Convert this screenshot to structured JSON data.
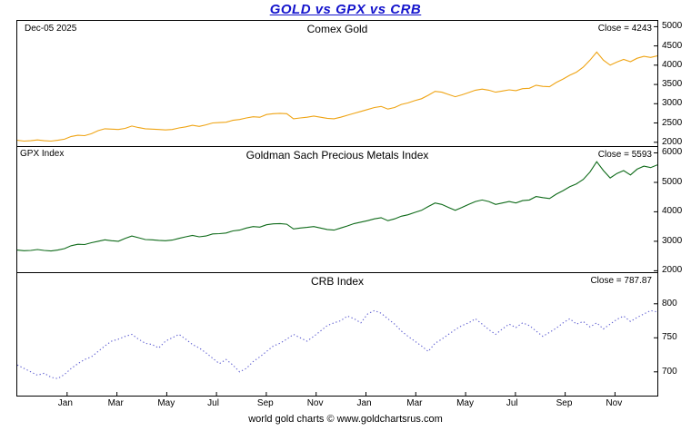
{
  "header": {
    "title": "GOLD vs GPX vs CRB",
    "date": "Dec-05  2025"
  },
  "footer": {
    "credit": "world gold charts © www.goldchartsrus.com"
  },
  "x_axis": {
    "tick_labels": [
      "Jan",
      "Mar",
      "May",
      "Jul",
      "Sep",
      "Nov",
      "Jan",
      "Mar",
      "May",
      "Jul",
      "Sep",
      "Nov"
    ],
    "tick_month_positions": [
      2,
      4,
      6,
      8,
      10,
      12,
      14,
      16,
      18,
      20,
      22,
      24
    ],
    "months_total": 25.7
  },
  "chart_data": [
    {
      "type": "line",
      "title": "Comex Gold",
      "close_label": "Close = 4243",
      "close_value": 4243,
      "color": "#efa414",
      "line_style": "solid",
      "ylim": [
        1900,
        5150
      ],
      "yticks": [
        2000,
        2500,
        3000,
        3500,
        4000,
        4500,
        5000
      ],
      "values": [
        2050,
        2030,
        2040,
        2060,
        2040,
        2030,
        2050,
        2080,
        2150,
        2180,
        2170,
        2220,
        2300,
        2350,
        2340,
        2330,
        2360,
        2420,
        2380,
        2350,
        2340,
        2330,
        2320,
        2330,
        2370,
        2400,
        2440,
        2410,
        2450,
        2500,
        2510,
        2520,
        2570,
        2590,
        2630,
        2660,
        2650,
        2720,
        2740,
        2750,
        2740,
        2610,
        2630,
        2650,
        2680,
        2650,
        2620,
        2610,
        2650,
        2700,
        2750,
        2800,
        2850,
        2900,
        2930,
        2860,
        2900,
        2980,
        3020,
        3080,
        3130,
        3220,
        3320,
        3300,
        3240,
        3180,
        3230,
        3290,
        3350,
        3380,
        3350,
        3300,
        3330,
        3360,
        3340,
        3390,
        3400,
        3480,
        3450,
        3440,
        3550,
        3640,
        3740,
        3820,
        3950,
        4130,
        4340,
        4130,
        4000,
        4080,
        4150,
        4090,
        4180,
        4230,
        4200,
        4243
      ]
    },
    {
      "type": "line",
      "title": "Goldman Sach Precious Metals Index",
      "left_label": "GPX Index",
      "close_label": "Close = 5593",
      "close_value": 5593,
      "color": "#0f6b1a",
      "line_style": "solid",
      "ylim": [
        1950,
        6200
      ],
      "yticks": [
        2000,
        3000,
        4000,
        5000,
        6000
      ],
      "values": [
        2700,
        2680,
        2690,
        2720,
        2690,
        2670,
        2700,
        2750,
        2850,
        2900,
        2890,
        2950,
        3000,
        3050,
        3020,
        3000,
        3100,
        3180,
        3120,
        3060,
        3050,
        3030,
        3020,
        3040,
        3100,
        3150,
        3200,
        3150,
        3180,
        3250,
        3260,
        3280,
        3350,
        3380,
        3450,
        3500,
        3480,
        3560,
        3590,
        3600,
        3580,
        3420,
        3450,
        3470,
        3500,
        3450,
        3400,
        3380,
        3450,
        3520,
        3600,
        3650,
        3700,
        3760,
        3800,
        3700,
        3760,
        3850,
        3900,
        3980,
        4050,
        4180,
        4300,
        4250,
        4150,
        4050,
        4150,
        4250,
        4350,
        4400,
        4350,
        4250,
        4300,
        4350,
        4300,
        4380,
        4400,
        4520,
        4480,
        4450,
        4600,
        4720,
        4850,
        4950,
        5100,
        5350,
        5700,
        5400,
        5150,
        5300,
        5400,
        5250,
        5450,
        5550,
        5500,
        5593
      ]
    },
    {
      "type": "line",
      "title": "CRB Index",
      "close_label": "Close = 787.87",
      "close_value": 787.87,
      "color": "#5a5ad0",
      "line_style": "dotted",
      "ylim": [
        665,
        845
      ],
      "yticks": [
        700,
        750,
        800
      ],
      "values": [
        710,
        705,
        700,
        695,
        698,
        692,
        690,
        696,
        705,
        712,
        718,
        722,
        730,
        738,
        745,
        748,
        752,
        755,
        748,
        742,
        740,
        735,
        745,
        750,
        755,
        748,
        740,
        735,
        728,
        720,
        712,
        718,
        710,
        700,
        705,
        715,
        722,
        730,
        738,
        742,
        748,
        755,
        750,
        745,
        752,
        760,
        768,
        772,
        775,
        782,
        778,
        772,
        785,
        790,
        786,
        778,
        770,
        760,
        752,
        745,
        738,
        730,
        742,
        748,
        755,
        762,
        768,
        772,
        778,
        770,
        762,
        755,
        763,
        770,
        765,
        772,
        768,
        760,
        752,
        758,
        764,
        772,
        778,
        770,
        774,
        766,
        772,
        763,
        770,
        777,
        782,
        774,
        780,
        785,
        790,
        787.87
      ]
    }
  ]
}
